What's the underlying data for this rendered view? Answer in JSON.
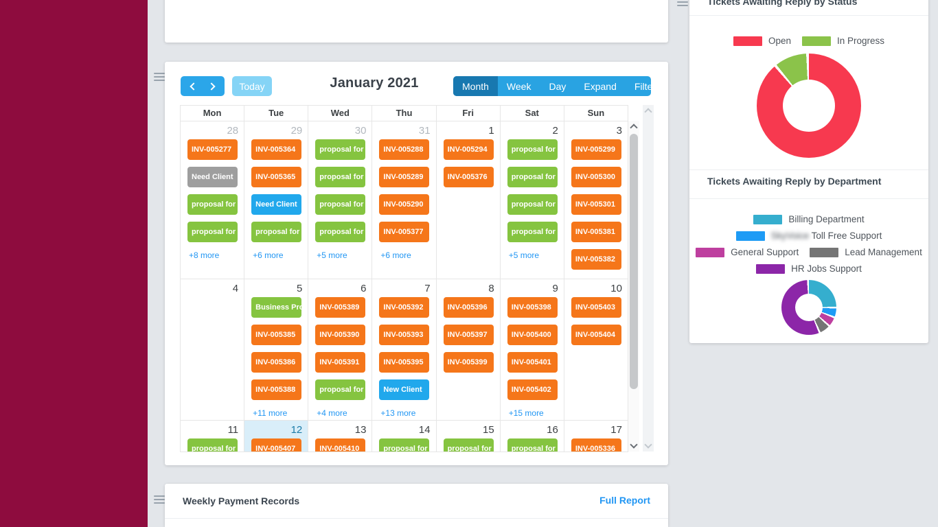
{
  "theme": {
    "sidebar_color": "#8E0C3E",
    "page_bg": "#E3E6EA",
    "toolbar_blue": "#29A3E2",
    "toolbar_selected": "#1878B0",
    "nav_blue": "#2BA6E9",
    "today_button_blue": "#85D4F6",
    "more_link_blue": "#2196F3",
    "event_colors": {
      "invoice": "#F5761A",
      "proposal": "#85C440",
      "status_gray": "#9E9E9E",
      "status_blue": "#21A8EC"
    }
  },
  "calendar": {
    "title": "January 2021",
    "today_label": "Today",
    "views": [
      {
        "label": "Month",
        "selected": true
      },
      {
        "label": "Week",
        "selected": false
      },
      {
        "label": "Day",
        "selected": false
      },
      {
        "label": "Expand",
        "selected": false
      },
      {
        "label": "Filter By",
        "selected": false
      }
    ],
    "weekdays": [
      "Mon",
      "Tue",
      "Wed",
      "Thu",
      "Fri",
      "Sat",
      "Sun"
    ],
    "weeks": [
      {
        "days": [
          {
            "num": "28",
            "muted": true,
            "events": [
              {
                "label": "INV-005277",
                "type": "invoice"
              },
              {
                "label": "Need Client",
                "type": "status_gray"
              },
              {
                "label": "proposal for",
                "type": "proposal"
              },
              {
                "label": "proposal for",
                "type": "proposal"
              }
            ],
            "more": "+8 more"
          },
          {
            "num": "29",
            "muted": true,
            "events": [
              {
                "label": "INV-005364",
                "type": "invoice"
              },
              {
                "label": "INV-005365",
                "type": "invoice"
              },
              {
                "label": "Need Client",
                "type": "status_blue"
              },
              {
                "label": "proposal for",
                "type": "proposal"
              }
            ],
            "more": "+6 more"
          },
          {
            "num": "30",
            "muted": true,
            "events": [
              {
                "label": "proposal for",
                "type": "proposal"
              },
              {
                "label": "proposal for",
                "type": "proposal"
              },
              {
                "label": "proposal for",
                "type": "proposal"
              },
              {
                "label": "proposal for",
                "type": "proposal"
              }
            ],
            "more": "+5 more"
          },
          {
            "num": "31",
            "muted": true,
            "events": [
              {
                "label": "INV-005288",
                "type": "invoice"
              },
              {
                "label": "INV-005289",
                "type": "invoice"
              },
              {
                "label": "INV-005290",
                "type": "invoice"
              },
              {
                "label": "INV-005377",
                "type": "invoice"
              }
            ],
            "more": "+6 more"
          },
          {
            "num": "1",
            "muted": false,
            "events": [
              {
                "label": "INV-005294",
                "type": "invoice"
              },
              {
                "label": "INV-005376",
                "type": "invoice"
              }
            ],
            "more": null
          },
          {
            "num": "2",
            "muted": false,
            "events": [
              {
                "label": "proposal for",
                "type": "proposal"
              },
              {
                "label": "proposal for",
                "type": "proposal"
              },
              {
                "label": "proposal for",
                "type": "proposal"
              },
              {
                "label": "proposal for",
                "type": "proposal"
              }
            ],
            "more": "+5 more"
          },
          {
            "num": "3",
            "muted": false,
            "events": [
              {
                "label": "INV-005299",
                "type": "invoice"
              },
              {
                "label": "INV-005300",
                "type": "invoice"
              },
              {
                "label": "INV-005301",
                "type": "invoice"
              },
              {
                "label": "INV-005381",
                "type": "invoice"
              },
              {
                "label": "INV-005382",
                "type": "invoice"
              }
            ],
            "more": null
          }
        ]
      },
      {
        "days": [
          {
            "num": "4",
            "muted": false,
            "events": [],
            "more": null
          },
          {
            "num": "5",
            "muted": false,
            "events": [
              {
                "label": "Business Pro",
                "type": "proposal"
              },
              {
                "label": "INV-005385",
                "type": "invoice"
              },
              {
                "label": "INV-005386",
                "type": "invoice"
              },
              {
                "label": "INV-005388",
                "type": "invoice"
              }
            ],
            "more": "+11 more"
          },
          {
            "num": "6",
            "muted": false,
            "events": [
              {
                "label": "INV-005389",
                "type": "invoice"
              },
              {
                "label": "INV-005390",
                "type": "invoice"
              },
              {
                "label": "INV-005391",
                "type": "invoice"
              },
              {
                "label": "proposal for",
                "type": "proposal"
              }
            ],
            "more": "+4 more"
          },
          {
            "num": "7",
            "muted": false,
            "events": [
              {
                "label": "INV-005392",
                "type": "invoice"
              },
              {
                "label": "INV-005393",
                "type": "invoice"
              },
              {
                "label": "INV-005395",
                "type": "invoice"
              },
              {
                "label": "New Client",
                "type": "status_blue"
              }
            ],
            "more": "+13 more"
          },
          {
            "num": "8",
            "muted": false,
            "events": [
              {
                "label": "INV-005396",
                "type": "invoice"
              },
              {
                "label": "INV-005397",
                "type": "invoice"
              },
              {
                "label": "INV-005399",
                "type": "invoice"
              }
            ],
            "more": null
          },
          {
            "num": "9",
            "muted": false,
            "events": [
              {
                "label": "INV-005398",
                "type": "invoice"
              },
              {
                "label": "INV-005400",
                "type": "invoice"
              },
              {
                "label": "INV-005401",
                "type": "invoice"
              },
              {
                "label": "INV-005402",
                "type": "invoice"
              }
            ],
            "more": "+15 more"
          },
          {
            "num": "10",
            "muted": false,
            "events": [
              {
                "label": "INV-005403",
                "type": "invoice"
              },
              {
                "label": "INV-005404",
                "type": "invoice"
              }
            ],
            "more": null
          }
        ]
      },
      {
        "days": [
          {
            "num": "11",
            "muted": false,
            "events": [
              {
                "label": "proposal for",
                "type": "proposal"
              }
            ],
            "more": null
          },
          {
            "num": "12",
            "muted": false,
            "today": true,
            "events": [
              {
                "label": "INV-005407",
                "type": "invoice"
              }
            ],
            "more": null
          },
          {
            "num": "13",
            "muted": false,
            "events": [
              {
                "label": "INV-005410",
                "type": "invoice"
              }
            ],
            "more": null
          },
          {
            "num": "14",
            "muted": false,
            "events": [
              {
                "label": "proposal for",
                "type": "proposal"
              }
            ],
            "more": null
          },
          {
            "num": "15",
            "muted": false,
            "events": [
              {
                "label": "proposal for",
                "type": "proposal"
              }
            ],
            "more": null
          },
          {
            "num": "16",
            "muted": false,
            "events": [
              {
                "label": "proposal for",
                "type": "proposal"
              }
            ],
            "more": null
          },
          {
            "num": "17",
            "muted": false,
            "events": [
              {
                "label": "INV-005336",
                "type": "invoice"
              }
            ],
            "more": null
          }
        ]
      }
    ]
  },
  "payments": {
    "title": "Weekly Payment Records",
    "link_label": "Full Report"
  },
  "chart_data": [
    {
      "type": "pie",
      "donut": true,
      "title": "Tickets Awaiting Reply by Status",
      "legend_position": "top",
      "series": [
        {
          "label": "Open",
          "value": 90,
          "color": "#F7394F"
        },
        {
          "label": "In Progress",
          "value": 10,
          "color": "#8BC34A"
        }
      ],
      "legend_rows": [
        [
          0,
          1
        ]
      ]
    },
    {
      "type": "pie",
      "donut": true,
      "title": "Tickets Awaiting Reply by Department",
      "legend_position": "top",
      "series": [
        {
          "label": "Billing Department",
          "value": 26,
          "color": "#35AECE"
        },
        {
          "label": "Toll Free Support",
          "blurred_prefix": "SkyVoice",
          "value": 5,
          "color": "#1E9BF5"
        },
        {
          "label": "General Support",
          "value": 5,
          "color": "#BE3F9F"
        },
        {
          "label": "Lead Management",
          "value": 6,
          "color": "#757575"
        },
        {
          "label": "HR Jobs Support",
          "value": 58,
          "color": "#8C26A8"
        }
      ],
      "legend_rows": [
        [
          0
        ],
        [
          1
        ],
        [
          2,
          3
        ],
        [
          4
        ]
      ]
    }
  ]
}
